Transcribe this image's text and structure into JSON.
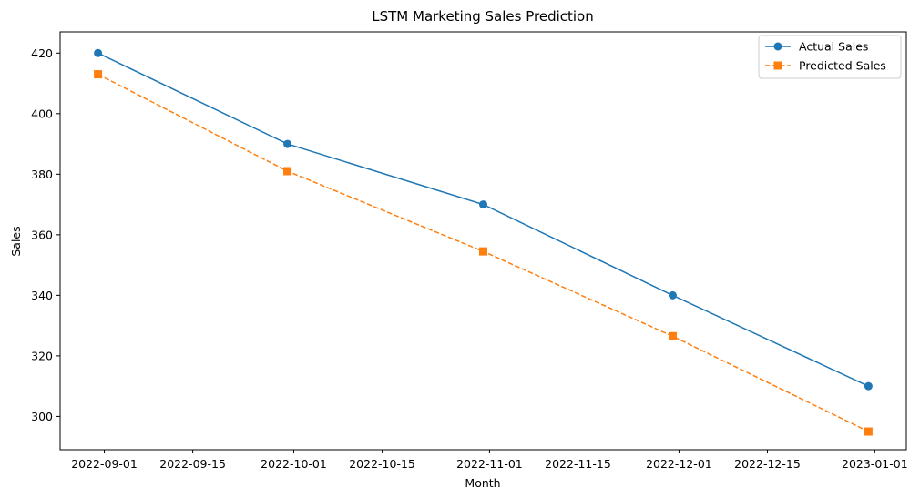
{
  "chart_data": {
    "type": "line",
    "title": "LSTM Marketing Sales Prediction",
    "xlabel": "Month",
    "ylabel": "Sales",
    "x": [
      "2022-08-31",
      "2022-09-30",
      "2022-10-31",
      "2022-11-30",
      "2022-12-31"
    ],
    "xlim": [
      "2022-08-25",
      "2023-01-06"
    ],
    "ylim": [
      289,
      427
    ],
    "yticks": [
      300,
      320,
      340,
      360,
      380,
      400,
      420
    ],
    "xticks": [
      {
        "date": "2022-09-01",
        "label": "2022-09-01"
      },
      {
        "date": "2022-09-15",
        "label": "2022-09-15"
      },
      {
        "date": "2022-10-01",
        "label": "2022-10-01"
      },
      {
        "date": "2022-10-15",
        "label": "2022-10-15"
      },
      {
        "date": "2022-11-01",
        "label": "2022-11-01"
      },
      {
        "date": "2022-11-15",
        "label": "2022-11-15"
      },
      {
        "date": "2022-12-01",
        "label": "2022-12-01"
      },
      {
        "date": "2022-12-15",
        "label": "2022-12-15"
      },
      {
        "date": "2023-01-01",
        "label": "2023-01-01"
      }
    ],
    "grid": false,
    "legend_position": "top-right",
    "series": [
      {
        "name": "Actual Sales",
        "values": [
          420,
          390,
          370,
          340,
          310
        ],
        "color": "#1f77b4",
        "marker": "circle",
        "linestyle": "solid"
      },
      {
        "name": "Predicted Sales",
        "values": [
          413,
          381,
          354.5,
          326.5,
          295
        ],
        "color": "#ff7f0e",
        "marker": "square",
        "linestyle": "dashed"
      }
    ]
  }
}
